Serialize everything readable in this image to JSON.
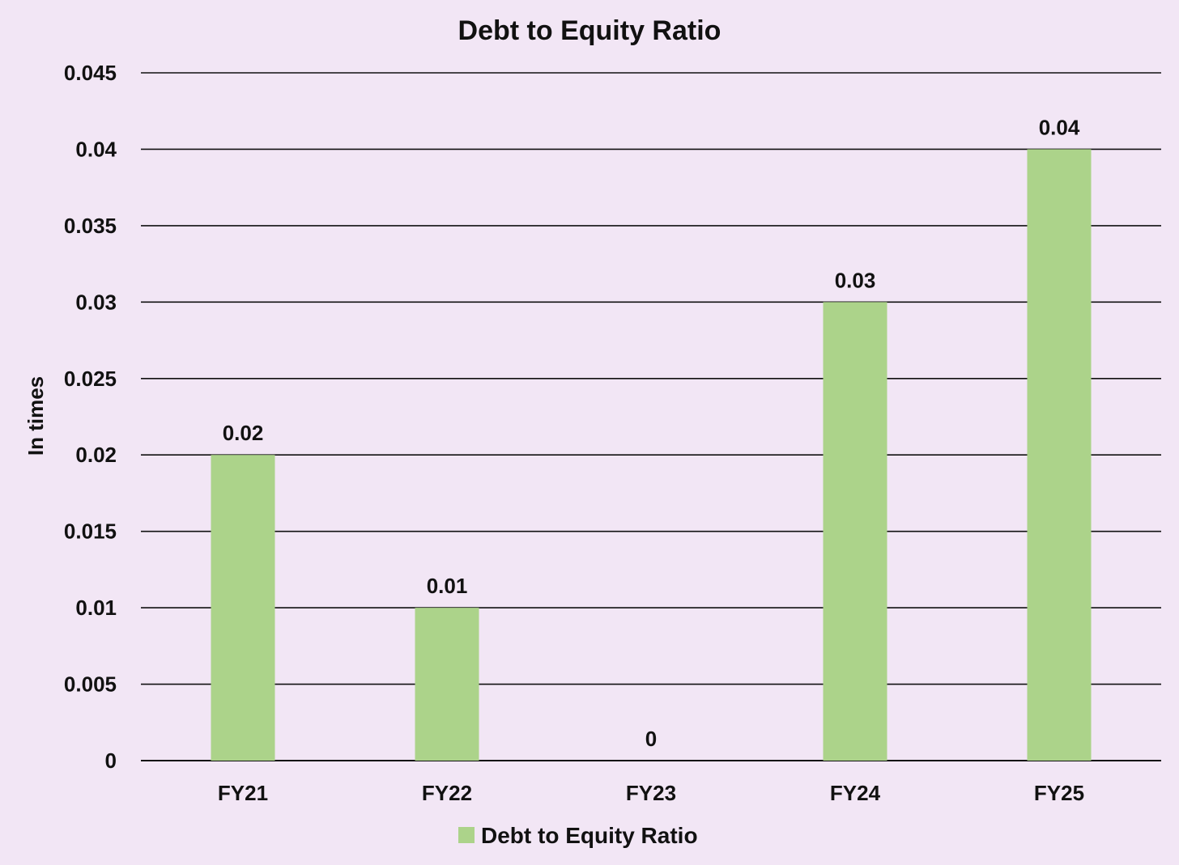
{
  "chart_data": {
    "type": "bar",
    "title": "Debt to Equity Ratio",
    "xlabel": "",
    "ylabel": "In times",
    "categories": [
      "FY21",
      "FY22",
      "FY23",
      "FY24",
      "FY25"
    ],
    "series": [
      {
        "name": "Debt to Equity Ratio",
        "values": [
          0.02,
          0.01,
          0,
          0.03,
          0.04
        ],
        "data_labels": [
          "0.02",
          "0.01",
          "0",
          "0.03",
          "0.04"
        ],
        "color": "#acd38a"
      }
    ],
    "ylim": [
      0,
      0.045
    ],
    "yticks": [
      0,
      0.005,
      0.01,
      0.015,
      0.02,
      0.025,
      0.03,
      0.035,
      0.04,
      0.045
    ],
    "ytick_labels": [
      "0",
      "0.005",
      "0.01",
      "0.015",
      "0.02",
      "0.025",
      "0.03",
      "0.035",
      "0.04",
      "0.045"
    ],
    "grid": true,
    "legend_position": "bottom",
    "background_color": "#f2e6f5",
    "gridline_color": "#111111"
  }
}
